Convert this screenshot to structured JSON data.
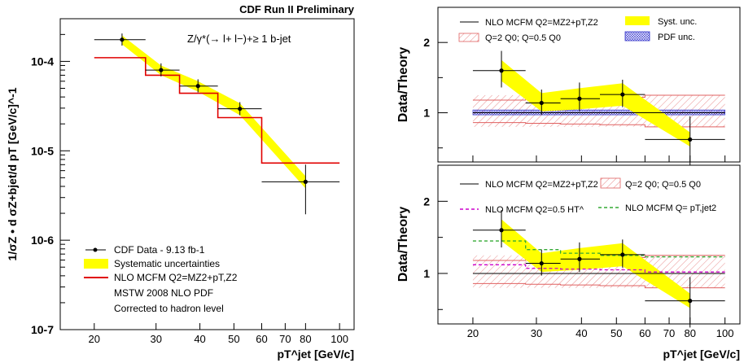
{
  "header": {
    "title": "CDF Run II Preliminary"
  },
  "chart_data": [
    {
      "type": "scatter",
      "panel": "left",
      "process_label": "Z/γ*(→ l+ l−)+≥ 1 b-jet",
      "ylabel": "1/σZ • d σZ+bjet/d pT [GeV/c]^-1",
      "xlabel": "pT^jet [GeV/c]",
      "xscale": "log",
      "yscale": "log",
      "xlim": [
        16,
        110
      ],
      "ylim": [
        1e-07,
        0.0003
      ],
      "x_tick_labels": [
        "20",
        "30",
        "40",
        "50",
        "60",
        "70",
        "80",
        "100"
      ],
      "y_tick_labels": [
        "10-7",
        "10-6",
        "10-5",
        "10-4"
      ],
      "legend": {
        "placement": "bottom-left",
        "entries": [
          "CDF Data - 9.13 fb-1",
          "Systematic uncertainties",
          "NLO MCFM Q2=MZ2+pT,Z2"
        ],
        "notes": [
          "MSTW 2008 NLO PDF",
          "Corrected to hadron level"
        ]
      },
      "data_points": [
        {
          "x": 24,
          "y": 0.000175,
          "xlo": 20,
          "xhi": 28,
          "ylo": 0.00015,
          "yhi": 0.000205
        },
        {
          "x": 31,
          "y": 8e-05,
          "xlo": 28,
          "xhi": 35,
          "ylo": 6.8e-05,
          "yhi": 9.5e-05
        },
        {
          "x": 39.5,
          "y": 5.3e-05,
          "xlo": 35,
          "xhi": 45,
          "ylo": 4.5e-05,
          "yhi": 6.3e-05
        },
        {
          "x": 52,
          "y": 2.95e-05,
          "xlo": 45,
          "xhi": 60,
          "ylo": 2.5e-05,
          "yhi": 3.5e-05
        },
        {
          "x": 80,
          "y": 4.5e-06,
          "xlo": 60,
          "xhi": 100,
          "ylo": 1.95e-06,
          "yhi": 7e-06
        }
      ],
      "syst_band": [
        {
          "x": 24,
          "lo": 0.000155,
          "hi": 0.000195
        },
        {
          "x": 31,
          "lo": 7e-05,
          "hi": 9e-05
        },
        {
          "x": 39.5,
          "lo": 4.6e-05,
          "hi": 6e-05
        },
        {
          "x": 52,
          "lo": 2.5e-05,
          "hi": 3.4e-05
        },
        {
          "x": 80,
          "lo": 3.8e-06,
          "hi": 5.2e-06
        }
      ],
      "nlo_histogram": {
        "edges": [
          20,
          28,
          35,
          45,
          60,
          100
        ],
        "values": [
          0.00011,
          7e-05,
          4.4e-05,
          2.35e-05,
          7.3e-06
        ]
      }
    },
    {
      "type": "scatter",
      "panel": "right-top",
      "ylabel": "Data/Theory",
      "xscale": "log",
      "xlim": [
        16,
        110
      ],
      "ylim": [
        0.3,
        2.5
      ],
      "y_tick_labels": [
        "1",
        "2"
      ],
      "legend": {
        "placement": "top",
        "entries": [
          "NLO MCFM Q2=MZ2+pT,Z2",
          "Q=2 Q0; Q=0.5 Q0",
          "Syst. unc.",
          "PDF unc."
        ]
      },
      "data_points": [
        {
          "x": 24,
          "y": 1.6,
          "xlo": 20,
          "xhi": 28,
          "ylo": 1.36,
          "yhi": 1.88
        },
        {
          "x": 31,
          "y": 1.14,
          "xlo": 28,
          "xhi": 35,
          "ylo": 0.97,
          "yhi": 1.33
        },
        {
          "x": 39.5,
          "y": 1.2,
          "xlo": 35,
          "xhi": 45,
          "ylo": 1.02,
          "yhi": 1.43
        },
        {
          "x": 52,
          "y": 1.26,
          "xlo": 45,
          "xhi": 60,
          "ylo": 1.08,
          "yhi": 1.47
        },
        {
          "x": 80,
          "y": 0.62,
          "xlo": 60,
          "xhi": 100,
          "ylo": 0.25,
          "yhi": 0.95
        }
      ],
      "syst_band": [
        {
          "x": 24,
          "lo": 1.45,
          "hi": 1.75
        },
        {
          "x": 31,
          "lo": 1.02,
          "hi": 1.28
        },
        {
          "x": 39.5,
          "lo": 1.05,
          "hi": 1.35
        },
        {
          "x": 52,
          "lo": 1.1,
          "hi": 1.42
        },
        {
          "x": 80,
          "lo": 0.52,
          "hi": 0.72
        }
      ],
      "pdf_band": [
        0.97,
        1.04
      ],
      "scale_band": {
        "edges": [
          20,
          28,
          35,
          45,
          60,
          100
        ],
        "hi": [
          1.18,
          1.2,
          1.21,
          1.22,
          1.25
        ],
        "lo": [
          0.86,
          0.85,
          0.84,
          0.83,
          0.8
        ]
      }
    },
    {
      "type": "scatter",
      "panel": "right-bottom",
      "ylabel": "Data/Theory",
      "xlabel": "pT^jet [GeV/c]",
      "xscale": "log",
      "xlim": [
        16,
        110
      ],
      "ylim": [
        0.3,
        2.5
      ],
      "x_tick_labels": [
        "20",
        "30",
        "40",
        "50",
        "60",
        "70",
        "80",
        "100"
      ],
      "y_tick_labels": [
        "1",
        "2"
      ],
      "legend": {
        "placement": "top",
        "entries": [
          "NLO MCFM Q2=MZ2+pT,Z2",
          "Q=2 Q0; Q=0.5 Q0",
          "NLO MCFM Q2=0.5 HT^",
          "NLO MCFM Q= pT,jet2"
        ]
      },
      "data_points": [
        {
          "x": 24,
          "y": 1.6,
          "xlo": 20,
          "xhi": 28,
          "ylo": 1.36,
          "yhi": 1.88
        },
        {
          "x": 31,
          "y": 1.14,
          "xlo": 28,
          "xhi": 35,
          "ylo": 0.97,
          "yhi": 1.33
        },
        {
          "x": 39.5,
          "y": 1.2,
          "xlo": 35,
          "xhi": 45,
          "ylo": 1.02,
          "yhi": 1.43
        },
        {
          "x": 52,
          "y": 1.26,
          "xlo": 45,
          "xhi": 60,
          "ylo": 1.08,
          "yhi": 1.47
        },
        {
          "x": 80,
          "y": 0.62,
          "xlo": 60,
          "xhi": 100,
          "ylo": 0.25,
          "yhi": 0.95
        }
      ],
      "syst_band": [
        {
          "x": 24,
          "lo": 1.45,
          "hi": 1.75
        },
        {
          "x": 31,
          "lo": 1.02,
          "hi": 1.28
        },
        {
          "x": 39.5,
          "lo": 1.05,
          "hi": 1.35
        },
        {
          "x": 52,
          "lo": 1.1,
          "hi": 1.42
        },
        {
          "x": 80,
          "lo": 0.52,
          "hi": 0.72
        }
      ],
      "scale_band": {
        "edges": [
          20,
          28,
          35,
          45,
          60,
          100
        ],
        "hi": [
          1.18,
          1.2,
          1.21,
          1.22,
          1.25
        ],
        "lo": [
          0.86,
          0.85,
          0.84,
          0.83,
          0.8
        ]
      },
      "ht_ratio": {
        "edges": [
          20,
          28,
          35,
          45,
          60,
          100
        ],
        "values": [
          1.12,
          1.07,
          1.06,
          1.05,
          1.02
        ]
      },
      "ptjet_ratio": {
        "edges": [
          20,
          28,
          35,
          45,
          60,
          100
        ],
        "values": [
          1.45,
          1.33,
          1.28,
          1.25,
          1.23
        ]
      }
    }
  ],
  "colors": {
    "data": "#000000",
    "syst": "#ffff00",
    "nlo": "#e00000",
    "pdf": "#3333cc",
    "ht": "#cc00cc",
    "ptjet": "#33aa33",
    "scale_hatch": "#e06060"
  }
}
